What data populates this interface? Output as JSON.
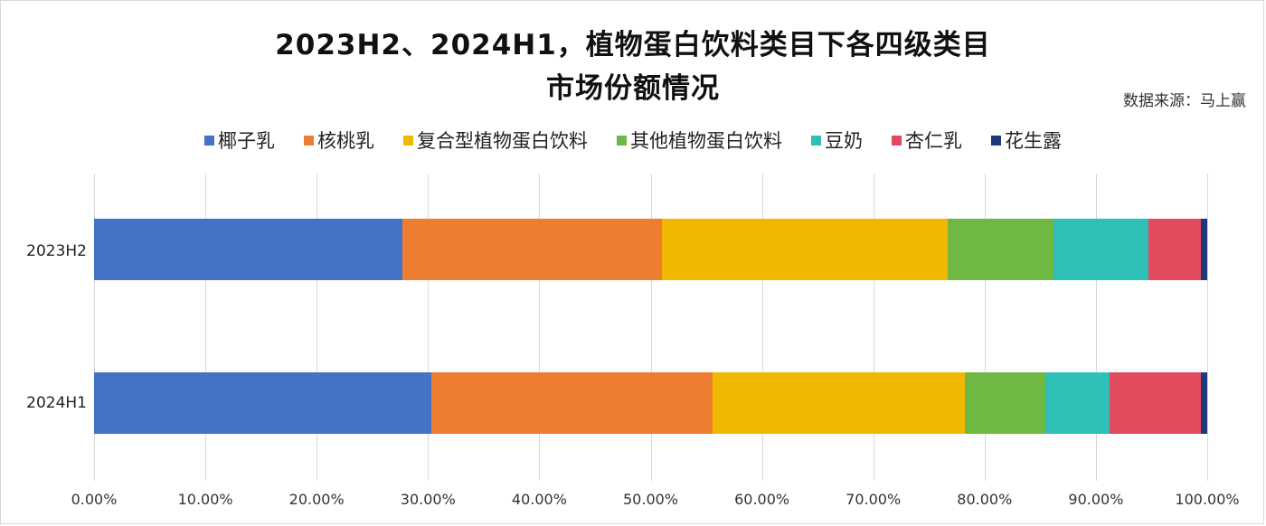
{
  "title": {
    "line1": "2023H2、2024H1，植物蛋白饮料类目下各四级类目",
    "line2": "市场份额情况"
  },
  "source": "数据来源：马上赢",
  "legend": [
    {
      "label": "椰子乳",
      "color": "#4472C4"
    },
    {
      "label": "核桃乳",
      "color": "#ED7D31"
    },
    {
      "label": "复合型植物蛋白饮料",
      "color": "#F0B800"
    },
    {
      "label": "其他植物蛋白饮料",
      "color": "#70B844"
    },
    {
      "label": "豆奶",
      "color": "#2EC0B6"
    },
    {
      "label": "杏仁乳",
      "color": "#E24A5E"
    },
    {
      "label": "花生露",
      "color": "#1F3A7A"
    }
  ],
  "chart_data": {
    "type": "bar",
    "orientation": "horizontal",
    "stacked": true,
    "normalized": true,
    "title": "2023H2、2024H1，植物蛋白饮料类目下各四级类目市场份额情况",
    "subtitle": "数据来源：马上赢",
    "categories": [
      "2023H2",
      "2024H1"
    ],
    "series": [
      {
        "name": "椰子乳",
        "color": "#4472C4",
        "values": [
          27.7,
          30.3
        ]
      },
      {
        "name": "核桃乳",
        "color": "#ED7D31",
        "values": [
          23.3,
          25.3
        ]
      },
      {
        "name": "复合型植物蛋白饮料",
        "color": "#F0B800",
        "values": [
          25.7,
          22.6
        ]
      },
      {
        "name": "其他植物蛋白饮料",
        "color": "#70B844",
        "values": [
          9.5,
          7.3
        ]
      },
      {
        "name": "豆奶",
        "color": "#2EC0B6",
        "values": [
          8.5,
          5.7
        ]
      },
      {
        "name": "杏仁乳",
        "color": "#E24A5E",
        "values": [
          4.7,
          8.2
        ]
      },
      {
        "name": "花生露",
        "color": "#1F3A7A",
        "values": [
          0.6,
          0.6
        ]
      }
    ],
    "xlabel": "",
    "ylabel": "",
    "xlim": [
      0,
      100
    ],
    "xticks": [
      "0.00%",
      "10.00%",
      "20.00%",
      "30.00%",
      "40.00%",
      "50.00%",
      "60.00%",
      "70.00%",
      "80.00%",
      "90.00%",
      "100.00%"
    ],
    "grid": true,
    "legend_position": "top"
  }
}
